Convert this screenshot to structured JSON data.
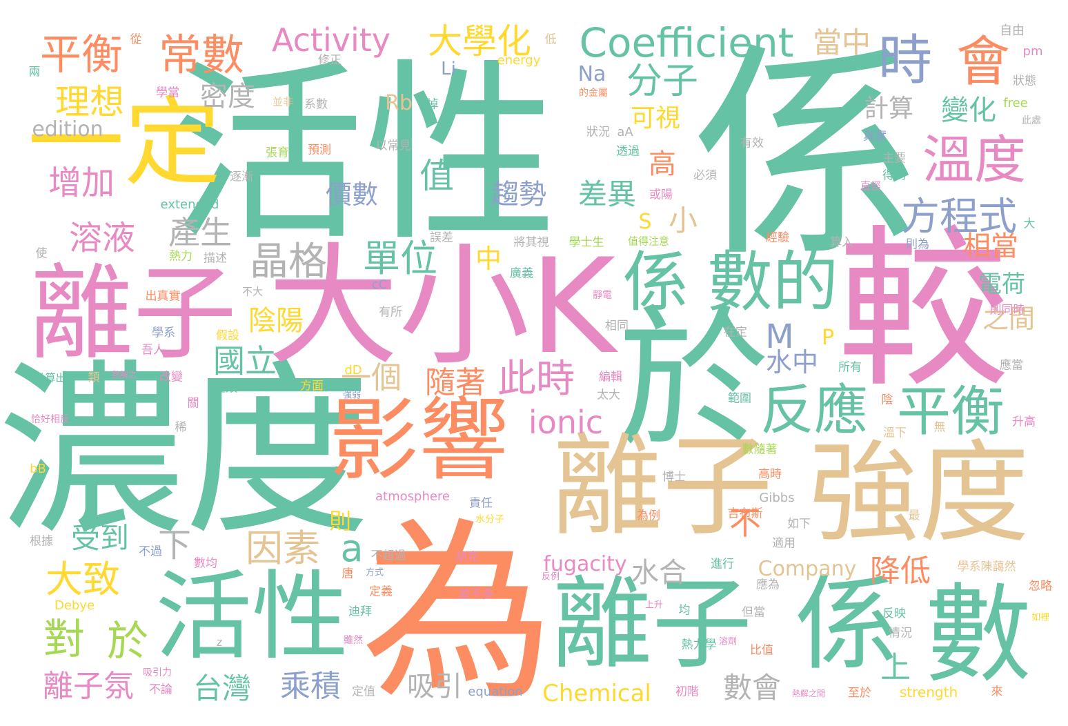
{
  "palette": {
    "green": "#66c2a5",
    "orange": "#fc8d62",
    "blue": "#8da0cb",
    "pink": "#e78ac3",
    "lime": "#a6d854",
    "yellow": "#ffd92f",
    "tan": "#e5c494",
    "gray": "#b3b3b3"
  },
  "words": [
    {
      "text": "係",
      "color": "green"
    },
    {
      "text": "活性",
      "color": "green"
    },
    {
      "text": "濃度",
      "color": "green"
    },
    {
      "text": "為",
      "color": "orange"
    },
    {
      "text": "較",
      "color": "pink"
    },
    {
      "text": "大小K",
      "color": "pink"
    },
    {
      "text": "於",
      "color": "green"
    },
    {
      "text": "離子",
      "color": "pink"
    },
    {
      "text": "離子",
      "color": "tan"
    },
    {
      "text": "強度",
      "color": "tan"
    },
    {
      "text": "活性",
      "color": "green"
    },
    {
      "text": "離子",
      "color": "green"
    },
    {
      "text": "係",
      "color": "green"
    },
    {
      "text": "數",
      "color": "green"
    },
    {
      "text": "影響",
      "color": "orange"
    },
    {
      "text": "一定",
      "color": "yellow"
    },
    {
      "text": "係",
      "color": "green"
    },
    {
      "text": "數的",
      "color": "green"
    },
    {
      "text": "Coefficient",
      "color": "green"
    },
    {
      "text": "時",
      "color": "blue"
    },
    {
      "text": "會",
      "color": "orange"
    },
    {
      "text": "溫度",
      "color": "pink"
    },
    {
      "text": "反應",
      "color": "green"
    },
    {
      "text": "平衡",
      "color": "green"
    },
    {
      "text": "方程式",
      "color": "blue"
    },
    {
      "text": "平衡",
      "color": "orange"
    },
    {
      "text": "常數",
      "color": "orange"
    },
    {
      "text": "Activity",
      "color": "pink"
    },
    {
      "text": "大學化",
      "color": "yellow"
    },
    {
      "text": "當中",
      "color": "tan"
    },
    {
      "text": "理想",
      "color": "yellow"
    },
    {
      "text": "分子",
      "color": "green"
    },
    {
      "text": "密度",
      "color": "gray"
    },
    {
      "text": "edition",
      "color": "gray"
    },
    {
      "text": "Rb",
      "color": "tan"
    },
    {
      "text": "Na",
      "color": "blue"
    },
    {
      "text": "Li",
      "color": "blue"
    },
    {
      "text": "增加",
      "color": "pink"
    },
    {
      "text": "值",
      "color": "green"
    },
    {
      "text": "價數",
      "color": "blue"
    },
    {
      "text": "可視",
      "color": "yellow"
    },
    {
      "text": "計算",
      "color": "gray"
    },
    {
      "text": "變化",
      "color": "green"
    },
    {
      "text": "高",
      "color": "orange"
    },
    {
      "text": "趨勢",
      "color": "blue"
    },
    {
      "text": "差異",
      "color": "green"
    },
    {
      "text": "溶液",
      "color": "pink"
    },
    {
      "text": "產生",
      "color": "gray"
    },
    {
      "text": "晶格",
      "color": "gray"
    },
    {
      "text": "單位",
      "color": "green"
    },
    {
      "text": "小",
      "color": "tan"
    },
    {
      "text": "相當",
      "color": "orange"
    },
    {
      "text": "電荷",
      "color": "green"
    },
    {
      "text": "之間",
      "color": "tan"
    },
    {
      "text": "M",
      "color": "blue"
    },
    {
      "text": "陰陽",
      "color": "yellow"
    },
    {
      "text": "國立",
      "color": "green"
    },
    {
      "text": "水中",
      "color": "blue"
    },
    {
      "text": "此時",
      "color": "pink"
    },
    {
      "text": "隨著",
      "color": "orange"
    },
    {
      "text": "一個",
      "color": "tan"
    },
    {
      "text": "ionic",
      "color": "pink"
    },
    {
      "text": "S",
      "color": "yellow"
    },
    {
      "text": "中",
      "color": "yellow"
    },
    {
      "text": "P",
      "color": "yellow"
    },
    {
      "text": "因素",
      "color": "tan"
    },
    {
      "text": "a",
      "color": "green"
    },
    {
      "text": "下",
      "color": "gray"
    },
    {
      "text": "則",
      "color": "yellow"
    },
    {
      "text": "不",
      "color": "orange"
    },
    {
      "text": "受到",
      "color": "green"
    },
    {
      "text": "大致",
      "color": "yellow"
    },
    {
      "text": "對",
      "color": "lime"
    },
    {
      "text": "於",
      "color": "lime"
    },
    {
      "text": "水合",
      "color": "gray"
    },
    {
      "text": "降低",
      "color": "orange"
    },
    {
      "text": "fugacity",
      "color": "pink"
    },
    {
      "text": "Company",
      "color": "tan"
    },
    {
      "text": "上",
      "color": "green"
    },
    {
      "text": "數會",
      "color": "gray"
    },
    {
      "text": "離子氛",
      "color": "pink"
    },
    {
      "text": "台灣",
      "color": "green"
    },
    {
      "text": "乘積",
      "color": "blue"
    },
    {
      "text": "吸引",
      "color": "gray"
    },
    {
      "text": "Chemical",
      "color": "yellow"
    },
    {
      "text": "strength",
      "color": "yellow"
    },
    {
      "text": "equation",
      "color": "blue"
    },
    {
      "text": "atmosphere",
      "color": "pink"
    },
    {
      "text": "Gibbs",
      "color": "gray"
    },
    {
      "text": "Debye",
      "color": "yellow"
    },
    {
      "text": "extended",
      "color": "green"
    },
    {
      "text": "energy",
      "color": "yellow"
    },
    {
      "text": "free",
      "color": "lime"
    },
    {
      "text": "pm",
      "color": "pink"
    },
    {
      "text": "bB",
      "color": "yellow"
    },
    {
      "text": "dD",
      "color": "yellow"
    },
    {
      "text": "cC",
      "color": "blue"
    },
    {
      "text": "aA",
      "color": "gray"
    },
    {
      "text": "z",
      "color": "gray"
    },
    {
      "text": "狀況",
      "color": "gray"
    },
    {
      "text": "預測",
      "color": "orange"
    },
    {
      "text": "以常見",
      "color": "gray"
    },
    {
      "text": "張育",
      "color": "lime"
    },
    {
      "text": "透過",
      "color": "green"
    },
    {
      "text": "修正",
      "color": "gray"
    },
    {
      "text": "低",
      "color": "tan"
    },
    {
      "text": "從",
      "color": "orange"
    },
    {
      "text": "兩",
      "color": "green"
    },
    {
      "text": "學當",
      "color": "pink"
    },
    {
      "text": "並非",
      "color": "tan"
    },
    {
      "text": "系數",
      "color": "gray"
    },
    {
      "text": "掉",
      "color": "green"
    },
    {
      "text": "的金屬",
      "color": "orange"
    },
    {
      "text": "自由",
      "color": "gray"
    },
    {
      "text": "狀態",
      "color": "gray"
    },
    {
      "text": "此處",
      "color": "gray"
    },
    {
      "text": "真實",
      "color": "blue"
    },
    {
      "text": "有效",
      "color": "gray"
    },
    {
      "text": "主要",
      "color": "gray"
    },
    {
      "text": "得到",
      "color": "green"
    },
    {
      "text": "必須",
      "color": "gray"
    },
    {
      "text": "直徑",
      "color": "pink"
    },
    {
      "text": "或陽",
      "color": "pink"
    },
    {
      "text": "逐漸",
      "color": "gray"
    },
    {
      "text": "誤差",
      "color": "gray"
    },
    {
      "text": "將其視",
      "color": "gray"
    },
    {
      "text": "學士生",
      "color": "lime"
    },
    {
      "text": "值得注意",
      "color": "lime"
    },
    {
      "text": "經驗",
      "color": "orange"
    },
    {
      "text": "算入",
      "color": "gray"
    },
    {
      "text": "則為",
      "color": "blue"
    },
    {
      "text": "大",
      "color": "green"
    },
    {
      "text": "使",
      "color": "gray"
    },
    {
      "text": "熱力",
      "color": "lime"
    },
    {
      "text": "描述",
      "color": "gray"
    },
    {
      "text": "不大",
      "color": "gray"
    },
    {
      "text": "廣義",
      "color": "green"
    },
    {
      "text": "出真實",
      "color": "orange"
    },
    {
      "text": "靜電",
      "color": "pink"
    },
    {
      "text": "則同時",
      "color": "pink"
    },
    {
      "text": "有所",
      "color": "gray"
    },
    {
      "text": "相同",
      "color": "gray"
    },
    {
      "text": "在定",
      "color": "gray"
    },
    {
      "text": "學系",
      "color": "blue"
    },
    {
      "text": "假設",
      "color": "yellow"
    },
    {
      "text": "吾人",
      "color": "pink"
    },
    {
      "text": "計算出",
      "color": "green"
    },
    {
      "text": "類",
      "color": "tan"
    },
    {
      "text": "熱解之",
      "color": "pink"
    },
    {
      "text": "改變",
      "color": "pink"
    },
    {
      "text": "種類",
      "color": "green"
    },
    {
      "text": "方面",
      "color": "yellow"
    },
    {
      "text": "編輯",
      "color": "pink"
    },
    {
      "text": "所有",
      "color": "green"
    },
    {
      "text": "應當",
      "color": "gray"
    },
    {
      "text": "恰好相反",
      "color": "pink"
    },
    {
      "text": "關",
      "color": "pink"
    },
    {
      "text": "強弱",
      "color": "blue"
    },
    {
      "text": "太大",
      "color": "gray"
    },
    {
      "text": "範圍",
      "color": "green"
    },
    {
      "text": "陰",
      "color": "orange"
    },
    {
      "text": "升高",
      "color": "pink"
    },
    {
      "text": "稀",
      "color": "gray"
    },
    {
      "text": "溫下",
      "color": "tan"
    },
    {
      "text": "無",
      "color": "tan"
    },
    {
      "text": "數隨著",
      "color": "lime"
    },
    {
      "text": "高時",
      "color": "orange"
    },
    {
      "text": "博士",
      "color": "gray"
    },
    {
      "text": "責任",
      "color": "blue"
    },
    {
      "text": "水分子",
      "color": "yellow"
    },
    {
      "text": "吉布斯",
      "color": "orange"
    },
    {
      "text": "為例",
      "color": "orange"
    },
    {
      "text": "如下",
      "color": "gray"
    },
    {
      "text": "最",
      "color": "tan"
    },
    {
      "text": "根據",
      "color": "gray"
    },
    {
      "text": "不過",
      "color": "blue"
    },
    {
      "text": "數均",
      "color": "pink"
    },
    {
      "text": "不超過",
      "color": "gray"
    },
    {
      "text": "胡克",
      "color": "pink"
    },
    {
      "text": "反例",
      "color": "pink"
    },
    {
      "text": "適用",
      "color": "gray"
    },
    {
      "text": "學系陳藹然",
      "color": "tan"
    },
    {
      "text": "進行",
      "color": "green"
    },
    {
      "text": "唐",
      "color": "orange"
    },
    {
      "text": "方式",
      "color": "blue"
    },
    {
      "text": "忽略",
      "color": "orange"
    },
    {
      "text": "應為",
      "color": "gray"
    },
    {
      "text": "定義",
      "color": "orange"
    },
    {
      "text": "差不多",
      "color": "pink"
    },
    {
      "text": "上升",
      "color": "pink"
    },
    {
      "text": "均",
      "color": "green"
    },
    {
      "text": "迪拜",
      "color": "green"
    },
    {
      "text": "但當",
      "color": "gray"
    },
    {
      "text": "反映",
      "color": "green"
    },
    {
      "text": "情況",
      "color": "gray"
    },
    {
      "text": "如裡",
      "color": "yellow"
    },
    {
      "text": "雖然",
      "color": "pink"
    },
    {
      "text": "熱力學",
      "color": "green"
    },
    {
      "text": "溶劑",
      "color": "pink"
    },
    {
      "text": "比值",
      "color": "orange"
    },
    {
      "text": "吸引力",
      "color": "pink"
    },
    {
      "text": "不論",
      "color": "pink"
    },
    {
      "text": "定值",
      "color": "gray"
    },
    {
      "text": "初階",
      "color": "pink"
    },
    {
      "text": "熱解之間",
      "color": "pink"
    },
    {
      "text": "至於",
      "color": "orange"
    },
    {
      "text": "來",
      "color": "orange"
    }
  ]
}
